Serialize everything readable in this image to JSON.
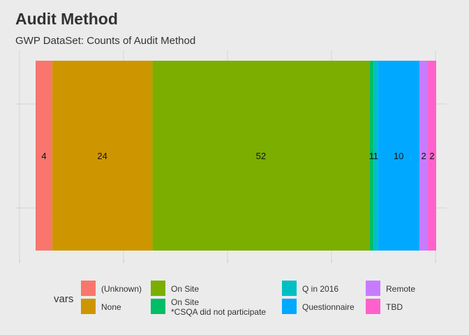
{
  "title": "Audit Method",
  "subtitle": "GWP DataSet: Counts of Audit Method",
  "chart_data": {
    "type": "bar",
    "orientation": "horizontal-stacked",
    "title": "Audit Method",
    "subtitle": "GWP DataSet: Counts of Audit Method",
    "xlabel": "",
    "ylabel": "",
    "grid": true,
    "legend_title": "vars",
    "legend_position": "bottom",
    "series": [
      {
        "name": "(Unknown)",
        "value": 4,
        "color": "#F8766D"
      },
      {
        "name": "None",
        "value": 24,
        "color": "#CD9600"
      },
      {
        "name": "On Site",
        "value": 52,
        "color": "#7CAE00"
      },
      {
        "name": "On Site\n*CSQA did not participate",
        "value": 1,
        "color": "#00BE67"
      },
      {
        "name": "Q in 2016",
        "value": 1,
        "color": "#00BFC4"
      },
      {
        "name": "Questionnaire",
        "value": 10,
        "color": "#00A9FF"
      },
      {
        "name": "Remote",
        "value": 2,
        "color": "#C77CFF"
      },
      {
        "name": "TBD",
        "value": 2,
        "color": "#FF61CC"
      }
    ]
  }
}
